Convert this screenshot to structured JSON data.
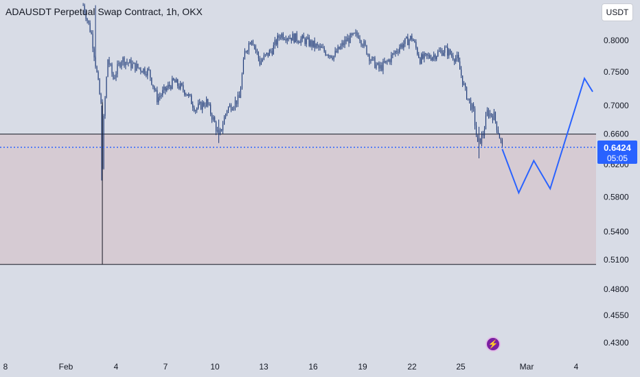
{
  "header": {
    "title": "ADAUSDT Perpetual Swap Contract, 1h, OKX"
  },
  "toolbar": {
    "currency_label": "USDT"
  },
  "last_price": {
    "value": "0.6424",
    "countdown": "05:05"
  },
  "colors": {
    "background": "#d8dce6",
    "zone_fill": "#d6cbd3",
    "candle": "#1e3a78",
    "projection": "#2962ff",
    "badge": "#2962ff"
  },
  "icons": {
    "event_marker": "lightning-icon"
  },
  "chart_data": {
    "type": "candlestick",
    "title": "ADAUSDT Perpetual Swap Contract, 1h, OKX",
    "xlabel": "",
    "ylabel": "",
    "y_scale": "log",
    "x_tick_labels": [
      "8",
      "Feb",
      "4",
      "7",
      "10",
      "13",
      "16",
      "19",
      "22",
      "25",
      "Mar",
      "4"
    ],
    "y_ticks": [
      "0.8000",
      "0.7500",
      "0.7000",
      "0.6600",
      "0.6200",
      "0.5800",
      "0.5400",
      "0.5100",
      "0.4800",
      "0.4550",
      "0.4300"
    ],
    "zone": {
      "upper": 0.66,
      "lower": 0.505
    },
    "last_price_line": 0.6424,
    "price_path": [
      [
        "Feb 2 00:00",
        0.86
      ],
      [
        "Feb 2 12:00",
        0.81
      ],
      [
        "Feb 3 02:00",
        0.7
      ],
      [
        "Feb 3 04:00",
        0.62
      ],
      [
        "Feb 3 06:00",
        0.68
      ],
      [
        "Feb 3 12:00",
        0.77
      ],
      [
        "Feb 3 20:00",
        0.74
      ],
      [
        "Feb 4 08:00",
        0.77
      ],
      [
        "Feb 5 00:00",
        0.76
      ],
      [
        "Feb 6 00:00",
        0.75
      ],
      [
        "Feb 6 12:00",
        0.71
      ],
      [
        "Feb 7 12:00",
        0.735
      ],
      [
        "Feb 8 06:00",
        0.72
      ],
      [
        "Feb 8 20:00",
        0.695
      ],
      [
        "Feb 9 12:00",
        0.705
      ],
      [
        "Feb 10 00:00",
        0.675
      ],
      [
        "Feb 10 06:00",
        0.655
      ],
      [
        "Feb 10 18:00",
        0.695
      ],
      [
        "Feb 11 12:00",
        0.71
      ],
      [
        "Feb 11 20:00",
        0.78
      ],
      [
        "Feb 12 06:00",
        0.805
      ],
      [
        "Feb 12 18:00",
        0.765
      ],
      [
        "Feb 13 12:00",
        0.785
      ],
      [
        "Feb 14 00:00",
        0.81
      ],
      [
        "Feb 14 18:00",
        0.805
      ],
      [
        "Feb 15 12:00",
        0.8
      ],
      [
        "Feb 16 12:00",
        0.785
      ],
      [
        "Feb 17 06:00",
        0.775
      ],
      [
        "Feb 18 00:00",
        0.8
      ],
      [
        "Feb 18 18:00",
        0.81
      ],
      [
        "Feb 19 12:00",
        0.77
      ],
      [
        "Feb 20 00:00",
        0.755
      ],
      [
        "Feb 20 12:00",
        0.765
      ],
      [
        "Feb 21 06:00",
        0.79
      ],
      [
        "Feb 22 00:00",
        0.805
      ],
      [
        "Feb 22 12:00",
        0.77
      ],
      [
        "Feb 23 06:00",
        0.775
      ],
      [
        "Feb 24 00:00",
        0.785
      ],
      [
        "Feb 24 18:00",
        0.77
      ],
      [
        "Feb 25 06:00",
        0.72
      ],
      [
        "Feb 25 18:00",
        0.69
      ],
      [
        "Feb 26 00:00",
        0.645
      ],
      [
        "Feb 26 08:00",
        0.66
      ],
      [
        "Feb 26 14:00",
        0.69
      ],
      [
        "Feb 27 00:00",
        0.685
      ],
      [
        "Feb 27 12:00",
        0.6424
      ]
    ],
    "projection": {
      "color": "#2962ff",
      "points": [
        [
          "Feb 27 12:00",
          0.64
        ],
        [
          "Feb 28 12:00",
          0.585
        ],
        [
          "Feb 29 10:00",
          0.625
        ],
        [
          "Mar 1 10:00",
          0.59
        ],
        [
          "Mar 3 12:00",
          0.74
        ],
        [
          "Mar 4 00:00",
          0.72
        ]
      ]
    },
    "grid": false,
    "legend": "none"
  }
}
